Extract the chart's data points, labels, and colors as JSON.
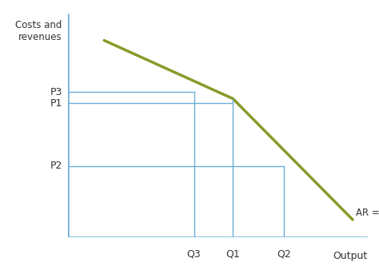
{
  "ylabel": "Costs and\nrevenues",
  "xlabel": "Output",
  "ar_label": "AR = D",
  "kink_x": 55,
  "kink_y": 62,
  "upper_start_x": 12,
  "upper_start_y": 88,
  "lower_end_x": 95,
  "lower_end_y": 8,
  "Q1": 55,
  "Q2": 72,
  "Q3": 42,
  "P1": 60,
  "P2": 32,
  "P3": 65,
  "curve_color": "#8a9a2a",
  "ref_color": "#6baed6",
  "axis_color": "#6baed6",
  "text_color": "#333333",
  "lw_curve": 2.5,
  "lw_ref": 1.0,
  "lw_axis": 1.8,
  "xlim": [
    0,
    100
  ],
  "ylim": [
    0,
    100
  ]
}
